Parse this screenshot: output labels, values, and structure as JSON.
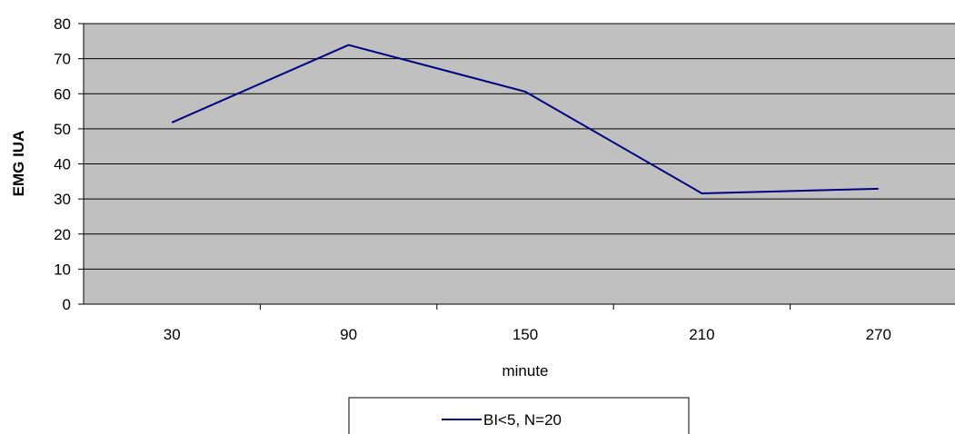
{
  "chart_data": {
    "type": "line",
    "title": "",
    "xlabel": "minute",
    "ylabel": "EMG IUA",
    "categories": [
      "30",
      "90",
      "150",
      "210",
      "270"
    ],
    "ylim": [
      0,
      80
    ],
    "yticks": [
      0,
      10,
      20,
      30,
      40,
      50,
      60,
      70,
      80
    ],
    "grid": true,
    "legend_position": "bottom",
    "plot_background": "#C0C0C0",
    "series": [
      {
        "name": "BI<5, N=20",
        "color": "#000080",
        "values": [
          51.8,
          73.9,
          60.6,
          31.6,
          32.9
        ]
      }
    ]
  }
}
